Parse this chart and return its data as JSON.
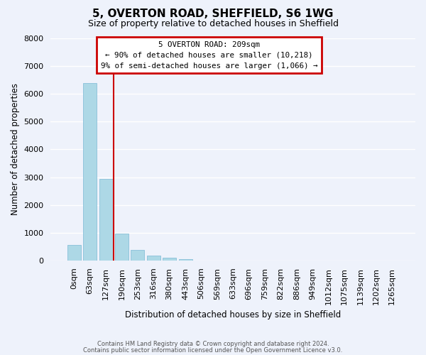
{
  "title": "5, OVERTON ROAD, SHEFFIELD, S6 1WG",
  "subtitle": "Size of property relative to detached houses in Sheffield",
  "xlabel": "Distribution of detached houses by size in Sheffield",
  "ylabel": "Number of detached properties",
  "bar_values": [
    560,
    6400,
    2930,
    980,
    390,
    190,
    100,
    60,
    0,
    0,
    0,
    0,
    0,
    0,
    0,
    0,
    0,
    0,
    0,
    0,
    0
  ],
  "bar_labels": [
    "0sqm",
    "63sqm",
    "127sqm",
    "190sqm",
    "253sqm",
    "316sqm",
    "380sqm",
    "443sqm",
    "506sqm",
    "569sqm",
    "633sqm",
    "696sqm",
    "759sqm",
    "822sqm",
    "886sqm",
    "949sqm",
    "1012sqm",
    "1075sqm",
    "1139sqm",
    "1202sqm",
    "1265sqm"
  ],
  "bar_color": "#add8e6",
  "bar_edge_color": "#7ab8d4",
  "vline_color": "#cc0000",
  "vline_x": 2.5,
  "ylim": [
    0,
    8000
  ],
  "yticks": [
    0,
    1000,
    2000,
    3000,
    4000,
    5000,
    6000,
    7000,
    8000
  ],
  "annotation_title": "5 OVERTON ROAD: 209sqm",
  "annotation_line1": "← 90% of detached houses are smaller (10,218)",
  "annotation_line2": "9% of semi-detached houses are larger (1,066) →",
  "annotation_box_color": "#cc0000",
  "footer1": "Contains HM Land Registry data © Crown copyright and database right 2024.",
  "footer2": "Contains public sector information licensed under the Open Government Licence v3.0.",
  "background_color": "#eef2fb",
  "grid_color": "#ffffff"
}
